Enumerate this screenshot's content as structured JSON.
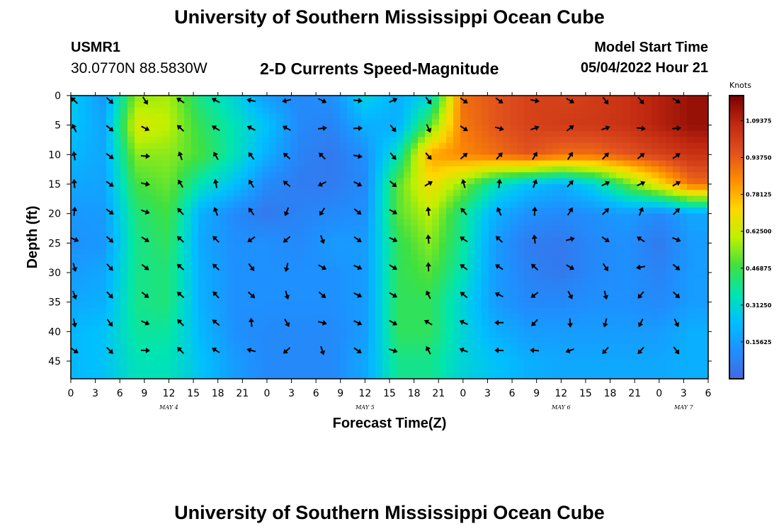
{
  "header": {
    "title": "University of Southern Mississippi Ocean Cube",
    "station_id": "USMR1",
    "coords": "30.0770N  88.5830W",
    "chart_title": "2-D Currents Speed-Magnitude",
    "start_label": "Model Start Time",
    "start_value": "05/04/2022 Hour 21"
  },
  "footer": {
    "title": "University of Southern Mississippi Ocean Cube"
  },
  "chart_data": {
    "type": "heatmap",
    "xlabel": "Forecast Time(Z)",
    "ylabel": "Depth (ft)",
    "x_tick_labels": [
      "0",
      "3",
      "6",
      "9",
      "12",
      "15",
      "18",
      "21",
      "0",
      "3",
      "6",
      "9",
      "12",
      "15",
      "18",
      "21",
      "0",
      "3",
      "6",
      "9",
      "12",
      "15",
      "18",
      "21",
      "0",
      "3",
      "6"
    ],
    "x_range_hours": [
      0,
      78
    ],
    "day_labels": [
      {
        "text": "MAY 4",
        "hour": 12
      },
      {
        "text": "MAY 5",
        "hour": 36
      },
      {
        "text": "MAY 6",
        "hour": 60
      },
      {
        "text": "MAY 7",
        "hour": 75
      }
    ],
    "y_tick_labels": [
      "0",
      "5",
      "10",
      "15",
      "20",
      "25",
      "30",
      "35",
      "40",
      "45"
    ],
    "y_range_ft": [
      0,
      48
    ],
    "colorbar": {
      "unit": "Knots",
      "ticks": [
        "0.15625",
        "0.31250",
        "0.46875",
        "0.62500",
        "0.78125",
        "0.93750",
        "1.09375"
      ],
      "range": [
        0,
        1.2
      ],
      "colors": [
        "#4169e1",
        "#1e90ff",
        "#00bfff",
        "#00e5b0",
        "#40e040",
        "#c0f000",
        "#ffd700",
        "#ff8c00",
        "#e0501e",
        "#c02810",
        "#7a0000"
      ]
    },
    "speed_depths_ft": [
      0,
      5,
      10,
      15,
      20,
      25,
      30,
      35,
      40,
      45
    ],
    "speed_hours": [
      0,
      4,
      8,
      12,
      16,
      20,
      24,
      28,
      32,
      36,
      40,
      44,
      48,
      52,
      56,
      60,
      64,
      68,
      72,
      76
    ],
    "speed_knots": [
      [
        0.28,
        0.15,
        0.55,
        0.58,
        0.4,
        0.3,
        0.15,
        0.1,
        0.12,
        0.3,
        0.2,
        0.3,
        0.9,
        0.95,
        1.0,
        1.0,
        1.02,
        1.05,
        1.1,
        1.15
      ],
      [
        0.26,
        0.17,
        0.65,
        0.6,
        0.45,
        0.35,
        0.25,
        0.1,
        0.08,
        0.2,
        0.2,
        0.5,
        0.88,
        0.95,
        1.0,
        1.02,
        1.03,
        1.05,
        1.1,
        1.15
      ],
      [
        0.22,
        0.18,
        0.55,
        0.55,
        0.48,
        0.35,
        0.2,
        0.08,
        0.05,
        0.12,
        0.35,
        0.8,
        0.85,
        0.9,
        0.95,
        0.9,
        0.9,
        0.95,
        1.0,
        1.05
      ],
      [
        0.18,
        0.17,
        0.48,
        0.52,
        0.35,
        0.25,
        0.1,
        0.06,
        0.06,
        0.1,
        0.5,
        0.7,
        0.55,
        0.35,
        0.25,
        0.2,
        0.3,
        0.5,
        0.7,
        0.9
      ],
      [
        0.14,
        0.15,
        0.42,
        0.48,
        0.2,
        0.1,
        0.05,
        0.08,
        0.1,
        0.12,
        0.5,
        0.6,
        0.4,
        0.2,
        0.12,
        0.1,
        0.12,
        0.15,
        0.1,
        0.18
      ],
      [
        0.12,
        0.14,
        0.4,
        0.45,
        0.18,
        0.12,
        0.12,
        0.1,
        0.15,
        0.15,
        0.45,
        0.55,
        0.38,
        0.15,
        0.06,
        0.05,
        0.1,
        0.12,
        0.05,
        0.15
      ],
      [
        0.15,
        0.18,
        0.4,
        0.42,
        0.2,
        0.12,
        0.12,
        0.12,
        0.12,
        0.15,
        0.45,
        0.5,
        0.35,
        0.15,
        0.08,
        0.05,
        0.1,
        0.12,
        0.08,
        0.15
      ],
      [
        0.18,
        0.2,
        0.4,
        0.42,
        0.2,
        0.12,
        0.12,
        0.12,
        0.12,
        0.15,
        0.45,
        0.45,
        0.3,
        0.15,
        0.1,
        0.1,
        0.12,
        0.12,
        0.1,
        0.15
      ],
      [
        0.22,
        0.25,
        0.38,
        0.38,
        0.22,
        0.12,
        0.1,
        0.1,
        0.1,
        0.15,
        0.45,
        0.45,
        0.3,
        0.2,
        0.15,
        0.15,
        0.15,
        0.15,
        0.15,
        0.2
      ],
      [
        0.22,
        0.25,
        0.35,
        0.35,
        0.25,
        0.15,
        0.1,
        0.1,
        0.1,
        0.18,
        0.4,
        0.4,
        0.3,
        0.25,
        0.2,
        0.18,
        0.18,
        0.18,
        0.18,
        0.2
      ]
    ],
    "vector_columns": 18,
    "vector_rows": 10
  }
}
